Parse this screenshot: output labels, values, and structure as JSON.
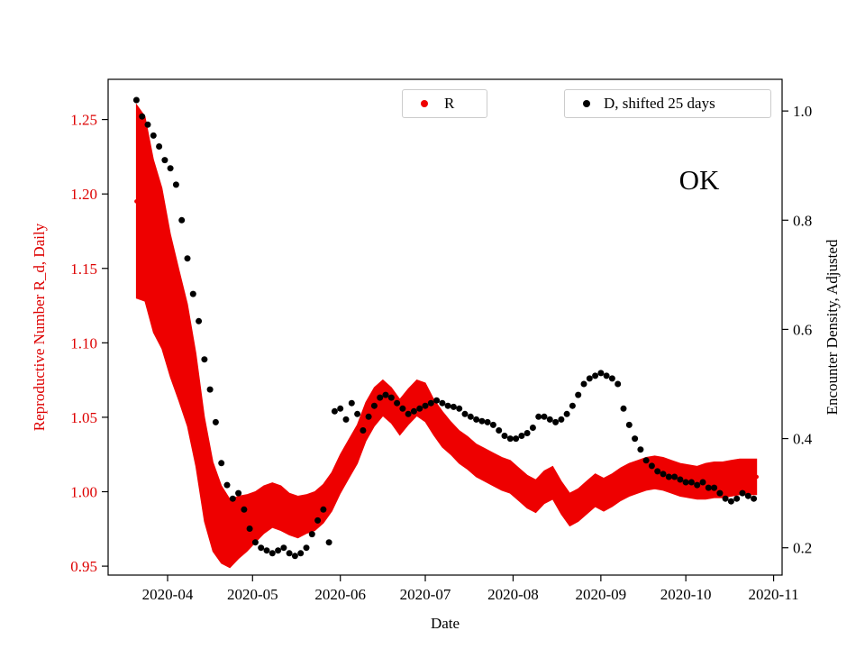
{
  "figure": {
    "background": "#ffffff",
    "annotation": "OK"
  },
  "chart_data": {
    "type": "scatter",
    "title": "",
    "annotation": "OK",
    "xlabel": "Date",
    "grid": false,
    "x_domain": [
      "2020-03-11",
      "2020-11-04"
    ],
    "x_ticks": [
      {
        "date": "2020-04-01",
        "label": "2020-04"
      },
      {
        "date": "2020-05-01",
        "label": "2020-05"
      },
      {
        "date": "2020-06-01",
        "label": "2020-06"
      },
      {
        "date": "2020-07-01",
        "label": "2020-07"
      },
      {
        "date": "2020-08-01",
        "label": "2020-08"
      },
      {
        "date": "2020-09-01",
        "label": "2020-09"
      },
      {
        "date": "2020-10-01",
        "label": "2020-10"
      },
      {
        "date": "2020-11-01",
        "label": "2020-11"
      }
    ],
    "left_axis": {
      "label": "Reproductive Number R_d, Daily",
      "color": "#dd0000",
      "range": [
        0.944,
        1.277
      ],
      "ticks": [
        {
          "value": 0.95,
          "label": "0.95"
        },
        {
          "value": 1.0,
          "label": "1.00"
        },
        {
          "value": 1.05,
          "label": "1.05"
        },
        {
          "value": 1.1,
          "label": "1.10"
        },
        {
          "value": 1.15,
          "label": "1.15"
        },
        {
          "value": 1.2,
          "label": "1.20"
        },
        {
          "value": 1.25,
          "label": "1.25"
        }
      ]
    },
    "right_axis": {
      "label": "Encounter Density, Adjusted",
      "color": "#000000",
      "range": [
        0.15,
        1.058
      ],
      "ticks": [
        {
          "value": 0.2,
          "label": "0.2"
        },
        {
          "value": 0.4,
          "label": "0.4"
        },
        {
          "value": 0.6,
          "label": "0.6"
        },
        {
          "value": 0.8,
          "label": "0.8"
        },
        {
          "value": 1.0,
          "label": "1.0"
        }
      ]
    },
    "legend": [
      {
        "label": "R",
        "color": "#ee0000"
      },
      {
        "label": "D, shifted 25 days",
        "color": "#000000"
      }
    ],
    "series": [
      {
        "name": "R",
        "axis": "left",
        "style": "errorband",
        "color": "#ee0000",
        "dates": [
          "2020-03-21",
          "2020-03-24",
          "2020-03-27",
          "2020-03-30",
          "2020-04-02",
          "2020-04-05",
          "2020-04-08",
          "2020-04-11",
          "2020-04-14",
          "2020-04-17",
          "2020-04-20",
          "2020-04-23",
          "2020-04-26",
          "2020-04-29",
          "2020-05-02",
          "2020-05-05",
          "2020-05-08",
          "2020-05-11",
          "2020-05-14",
          "2020-05-17",
          "2020-05-20",
          "2020-05-23",
          "2020-05-26",
          "2020-05-29",
          "2020-06-01",
          "2020-06-04",
          "2020-06-07",
          "2020-06-10",
          "2020-06-13",
          "2020-06-16",
          "2020-06-19",
          "2020-06-22",
          "2020-06-25",
          "2020-06-28",
          "2020-07-01",
          "2020-07-04",
          "2020-07-07",
          "2020-07-10",
          "2020-07-13",
          "2020-07-16",
          "2020-07-19",
          "2020-07-22",
          "2020-07-25",
          "2020-07-28",
          "2020-07-31",
          "2020-08-03",
          "2020-08-06",
          "2020-08-09",
          "2020-08-12",
          "2020-08-15",
          "2020-08-18",
          "2020-08-21",
          "2020-08-24",
          "2020-08-27",
          "2020-08-30",
          "2020-09-02",
          "2020-09-05",
          "2020-09-08",
          "2020-09-11",
          "2020-09-14",
          "2020-09-17",
          "2020-09-20",
          "2020-09-23",
          "2020-09-26",
          "2020-09-29",
          "2020-10-02",
          "2020-10-05",
          "2020-10-08",
          "2020-10-11",
          "2020-10-14",
          "2020-10-17",
          "2020-10-20",
          "2020-10-23",
          "2020-10-26"
        ],
        "values": [
          1.195,
          1.19,
          1.165,
          1.15,
          1.125,
          1.105,
          1.085,
          1.055,
          1.015,
          0.99,
          0.978,
          0.972,
          0.976,
          0.979,
          0.983,
          0.988,
          0.991,
          0.989,
          0.985,
          0.983,
          0.985,
          0.987,
          0.992,
          1.0,
          1.012,
          1.022,
          1.032,
          1.047,
          1.057,
          1.063,
          1.058,
          1.05,
          1.057,
          1.063,
          1.06,
          1.05,
          1.042,
          1.036,
          1.03,
          1.026,
          1.021,
          1.018,
          1.015,
          1.012,
          1.01,
          1.005,
          1.0,
          0.997,
          1.003,
          1.006,
          0.996,
          0.988,
          0.991,
          0.996,
          1.001,
          0.998,
          1.001,
          1.005,
          1.008,
          1.01,
          1.012,
          1.013,
          1.012,
          1.01,
          1.008,
          1.007,
          1.006,
          1.007,
          1.008,
          1.008,
          1.009,
          1.01,
          1.01,
          1.01
        ],
        "errors": [
          0.065,
          0.062,
          0.058,
          0.054,
          0.048,
          0.044,
          0.041,
          0.038,
          0.035,
          0.03,
          0.026,
          0.023,
          0.021,
          0.019,
          0.017,
          0.016,
          0.015,
          0.015,
          0.014,
          0.014,
          0.013,
          0.013,
          0.013,
          0.013,
          0.013,
          0.013,
          0.013,
          0.013,
          0.013,
          0.012,
          0.012,
          0.012,
          0.012,
          0.012,
          0.013,
          0.012,
          0.012,
          0.011,
          0.011,
          0.011,
          0.011,
          0.011,
          0.011,
          0.011,
          0.011,
          0.011,
          0.011,
          0.011,
          0.011,
          0.011,
          0.011,
          0.011,
          0.011,
          0.011,
          0.011,
          0.011,
          0.011,
          0.011,
          0.011,
          0.011,
          0.011,
          0.011,
          0.011,
          0.011,
          0.011,
          0.011,
          0.011,
          0.012,
          0.012,
          0.012,
          0.012,
          0.012,
          0.012,
          0.012
        ]
      },
      {
        "name": "D, shifted 25 days",
        "axis": "right",
        "style": "scatter",
        "color": "#000000",
        "dates": [
          "2020-03-21",
          "2020-03-23",
          "2020-03-25",
          "2020-03-27",
          "2020-03-29",
          "2020-03-31",
          "2020-04-02",
          "2020-04-04",
          "2020-04-06",
          "2020-04-08",
          "2020-04-10",
          "2020-04-12",
          "2020-04-14",
          "2020-04-16",
          "2020-04-18",
          "2020-04-20",
          "2020-04-22",
          "2020-04-24",
          "2020-04-26",
          "2020-04-28",
          "2020-04-30",
          "2020-05-02",
          "2020-05-04",
          "2020-05-06",
          "2020-05-08",
          "2020-05-10",
          "2020-05-12",
          "2020-05-14",
          "2020-05-16",
          "2020-05-18",
          "2020-05-20",
          "2020-05-22",
          "2020-05-24",
          "2020-05-26",
          "2020-05-28",
          "2020-05-30",
          "2020-06-01",
          "2020-06-03",
          "2020-06-05",
          "2020-06-07",
          "2020-06-09",
          "2020-06-11",
          "2020-06-13",
          "2020-06-15",
          "2020-06-17",
          "2020-06-19",
          "2020-06-21",
          "2020-06-23",
          "2020-06-25",
          "2020-06-27",
          "2020-06-29",
          "2020-07-01",
          "2020-07-03",
          "2020-07-05",
          "2020-07-07",
          "2020-07-09",
          "2020-07-11",
          "2020-07-13",
          "2020-07-15",
          "2020-07-17",
          "2020-07-19",
          "2020-07-21",
          "2020-07-23",
          "2020-07-25",
          "2020-07-27",
          "2020-07-29",
          "2020-07-31",
          "2020-08-02",
          "2020-08-04",
          "2020-08-06",
          "2020-08-08",
          "2020-08-10",
          "2020-08-12",
          "2020-08-14",
          "2020-08-16",
          "2020-08-18",
          "2020-08-20",
          "2020-08-22",
          "2020-08-24",
          "2020-08-26",
          "2020-08-28",
          "2020-08-30",
          "2020-09-01",
          "2020-09-03",
          "2020-09-05",
          "2020-09-07",
          "2020-09-09",
          "2020-09-11",
          "2020-09-13",
          "2020-09-15",
          "2020-09-17",
          "2020-09-19",
          "2020-09-21",
          "2020-09-23",
          "2020-09-25",
          "2020-09-27",
          "2020-09-29",
          "2020-10-01",
          "2020-10-03",
          "2020-10-05",
          "2020-10-07",
          "2020-10-09",
          "2020-10-11",
          "2020-10-13",
          "2020-10-15",
          "2020-10-17",
          "2020-10-19",
          "2020-10-21",
          "2020-10-23",
          "2020-10-25"
        ],
        "values": [
          1.02,
          0.99,
          0.975,
          0.955,
          0.935,
          0.91,
          0.895,
          0.865,
          0.8,
          0.73,
          0.665,
          0.615,
          0.545,
          0.49,
          0.43,
          0.355,
          0.315,
          0.29,
          0.3,
          0.27,
          0.235,
          0.21,
          0.2,
          0.195,
          0.19,
          0.195,
          0.2,
          0.19,
          0.185,
          0.19,
          0.2,
          0.225,
          0.25,
          0.27,
          0.21,
          0.45,
          0.455,
          0.435,
          0.465,
          0.445,
          0.415,
          0.44,
          0.46,
          0.475,
          0.48,
          0.475,
          0.465,
          0.455,
          0.445,
          0.45,
          0.455,
          0.46,
          0.465,
          0.47,
          0.465,
          0.46,
          0.458,
          0.455,
          0.445,
          0.44,
          0.435,
          0.432,
          0.43,
          0.425,
          0.415,
          0.405,
          0.4,
          0.4,
          0.405,
          0.41,
          0.42,
          0.44,
          0.44,
          0.435,
          0.43,
          0.435,
          0.445,
          0.46,
          0.48,
          0.5,
          0.51,
          0.515,
          0.52,
          0.515,
          0.51,
          0.5,
          0.455,
          0.425,
          0.4,
          0.38,
          0.36,
          0.35,
          0.34,
          0.335,
          0.33,
          0.33,
          0.325,
          0.32,
          0.32,
          0.315,
          0.32,
          0.31,
          0.31,
          0.3,
          0.29,
          0.285,
          0.29,
          0.3,
          0.295,
          0.29
        ]
      }
    ]
  }
}
